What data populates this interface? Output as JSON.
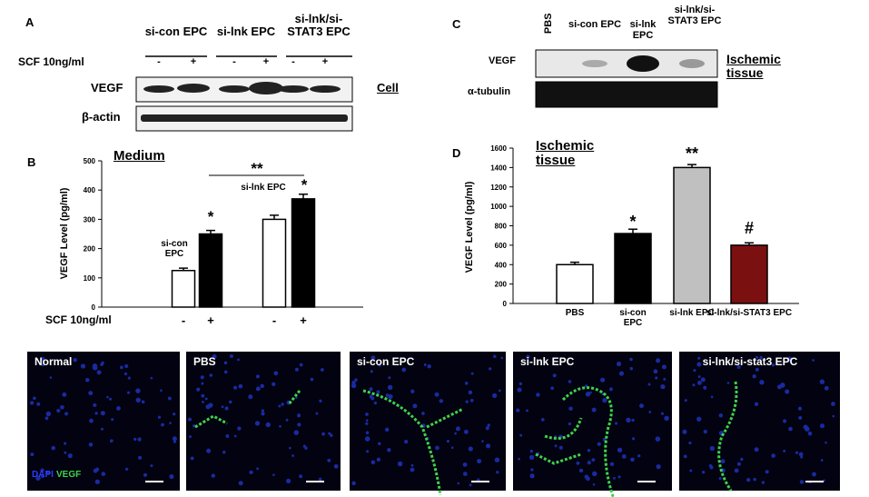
{
  "panel_a": {
    "letter": "A",
    "groups": [
      "si-con EPC",
      "si-lnk EPC",
      "si-lnk/si-STAT3 EPC"
    ],
    "treatment": "SCF 10ng/ml",
    "signs": [
      "-",
      "+",
      "-",
      "+",
      "-",
      "+"
    ],
    "rows": [
      "VEGF",
      "β-actin"
    ],
    "side_label": "Cell"
  },
  "panel_c": {
    "letter": "C",
    "lanes": [
      "PBS",
      "si-con EPC",
      "si-lnk EPC",
      "si-lnk/si-STAT3 EPC"
    ],
    "rows": [
      "VEGF",
      "α-tubulin"
    ],
    "side_label": "Ischemic tissue"
  },
  "chart_data": [
    {
      "type": "bar",
      "letter": "B",
      "title": "Medium",
      "y_label": "VEGF Level (pg/ml)",
      "categories": [
        "-",
        "+",
        "-",
        "+"
      ],
      "x_label": "SCF 10ng/ml",
      "groups": [
        "si-con EPC",
        "si-lnk EPC"
      ],
      "values": [
        125,
        250,
        300,
        370
      ],
      "errors": [
        8,
        12,
        14,
        16
      ],
      "colors": [
        "#ffffff",
        "#000000",
        "#ffffff",
        "#000000"
      ],
      "annotations": [
        "*",
        "*",
        "**"
      ],
      "ylim": [
        0,
        500
      ],
      "yticks": [
        0,
        100,
        200,
        300,
        400,
        500
      ]
    },
    {
      "type": "bar",
      "letter": "D",
      "title": "Ischemic tissue",
      "y_label": "VEGF Level (pg/ml)",
      "categories": [
        "PBS",
        "si-con EPC",
        "si-lnk EPC",
        "si-lnk/si-STAT3 EPC"
      ],
      "values": [
        400,
        720,
        1400,
        600
      ],
      "errors": [
        25,
        45,
        30,
        25
      ],
      "colors": [
        "#ffffff",
        "#000000",
        "#c0c0c0",
        "#7b1010"
      ],
      "annotations": [
        "*",
        "**",
        "#"
      ],
      "ylim": [
        0,
        1600
      ],
      "yticks": [
        0,
        200,
        400,
        600,
        800,
        1000,
        1200,
        1400,
        1600
      ]
    }
  ],
  "images": {
    "labels": [
      "Normal",
      "PBS",
      "si-con EPC",
      "si-lnk EPC",
      "si-lnk/si-stat3 EPC"
    ],
    "stain": [
      "DAPI",
      "VEGF"
    ]
  }
}
